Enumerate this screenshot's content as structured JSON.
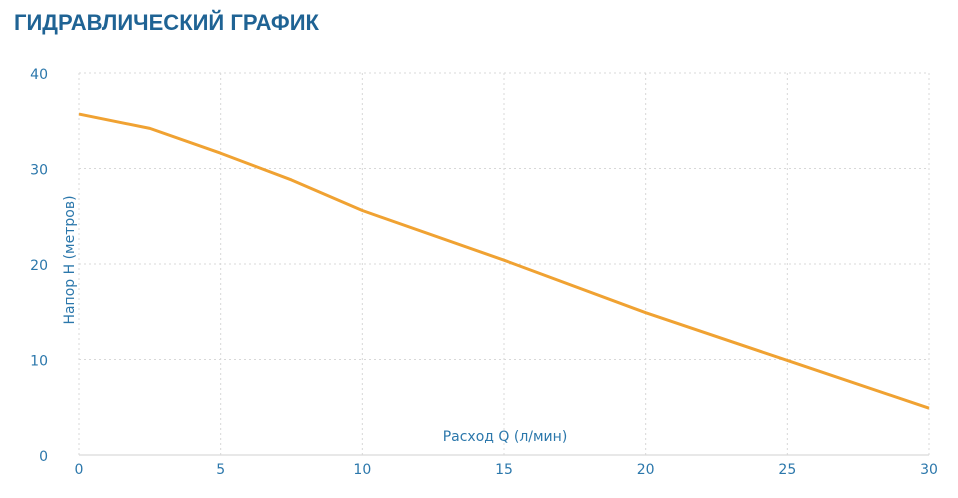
{
  "chart_data": {
    "type": "line",
    "title": "ГИДРАВЛИЧЕСКИЙ ГРАФИК",
    "x_label": "Расход Q (л/мин)",
    "y_label": "Напор H (метров)",
    "x": [
      0,
      2.5,
      5,
      7.5,
      10,
      15,
      20,
      25,
      30
    ],
    "series": [
      {
        "color": "#f0a232",
        "values": [
          35.7,
          34.2,
          31.6,
          28.8,
          25.6,
          20.4,
          14.9,
          9.9,
          4.9
        ]
      }
    ],
    "xlim": [
      0,
      30
    ],
    "xticks": [
      0,
      5,
      10,
      15,
      20,
      25,
      30
    ],
    "ylim": [
      0,
      40
    ],
    "yticks": [
      0,
      10,
      20,
      30,
      40
    ],
    "grid": true
  }
}
